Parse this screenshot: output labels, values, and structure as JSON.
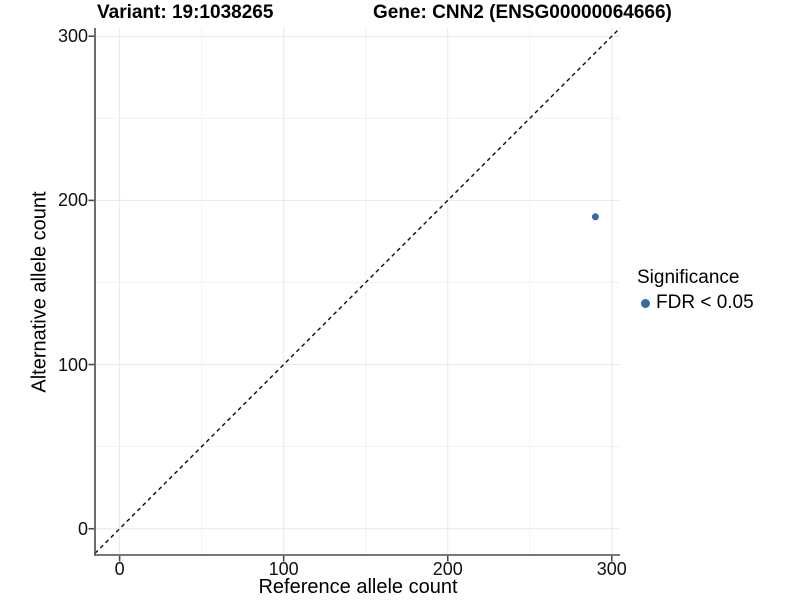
{
  "chart_data": {
    "type": "scatter",
    "titles": {
      "left": "Variant: 19:1038265",
      "right": "Gene: CNN2 (ENSG00000064666)"
    },
    "xlabel": "Reference allele count",
    "ylabel": "Alternative allele count",
    "xlim": [
      -15,
      305
    ],
    "ylim": [
      -16,
      305
    ],
    "x_ticks": [
      0,
      100,
      200,
      300
    ],
    "y_ticks": [
      0,
      100,
      200,
      300
    ],
    "x_minor_ticks": [
      50,
      150,
      250
    ],
    "y_minor_ticks": [
      50,
      150,
      250
    ],
    "grid": "major+minor",
    "points": [
      {
        "x": 290,
        "y": 190,
        "significance": "FDR < 0.05"
      }
    ],
    "point_color": "#336DA6",
    "point_radius": 3.5,
    "reference_line": {
      "slope": 1,
      "intercept": 0,
      "style": "dashed",
      "color": "#0a0a0a"
    },
    "legend": {
      "position": "right",
      "title": "Significance",
      "items": [
        {
          "label": "FDR < 0.05",
          "color": "#336DA6",
          "marker": "circle"
        }
      ]
    }
  },
  "colors": {
    "background": "#ffffff",
    "axis": "#4a4a4a",
    "grid_major": "#e8e8e8",
    "grid_minor": "#f2f2f2",
    "text": "#000000"
  }
}
